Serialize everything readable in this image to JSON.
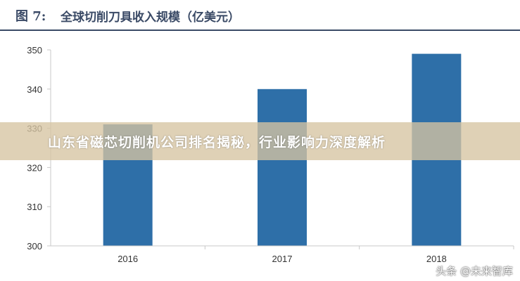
{
  "figure": {
    "number": "图  7:",
    "title": "全球切削刀具收入规模（亿美元）"
  },
  "overlay": {
    "headline": "山东省磁芯切削机公司排名揭秘，行业影响力深度解析"
  },
  "watermark": {
    "text": "头条 @未来智库"
  },
  "colors": {
    "bar": "#2e6fa8",
    "header": "#3a4a66",
    "axis": "#c8c8c8"
  },
  "chart_data": {
    "type": "bar",
    "title": "全球切削刀具收入规模（亿美元）",
    "categories": [
      "2016",
      "2017",
      "2018"
    ],
    "values": [
      331,
      340,
      349
    ],
    "ylim": [
      300,
      350
    ],
    "yticks": [
      "300",
      "310",
      "320",
      "330",
      "340",
      "350"
    ],
    "xlabel": "",
    "ylabel": "",
    "grid": false
  }
}
